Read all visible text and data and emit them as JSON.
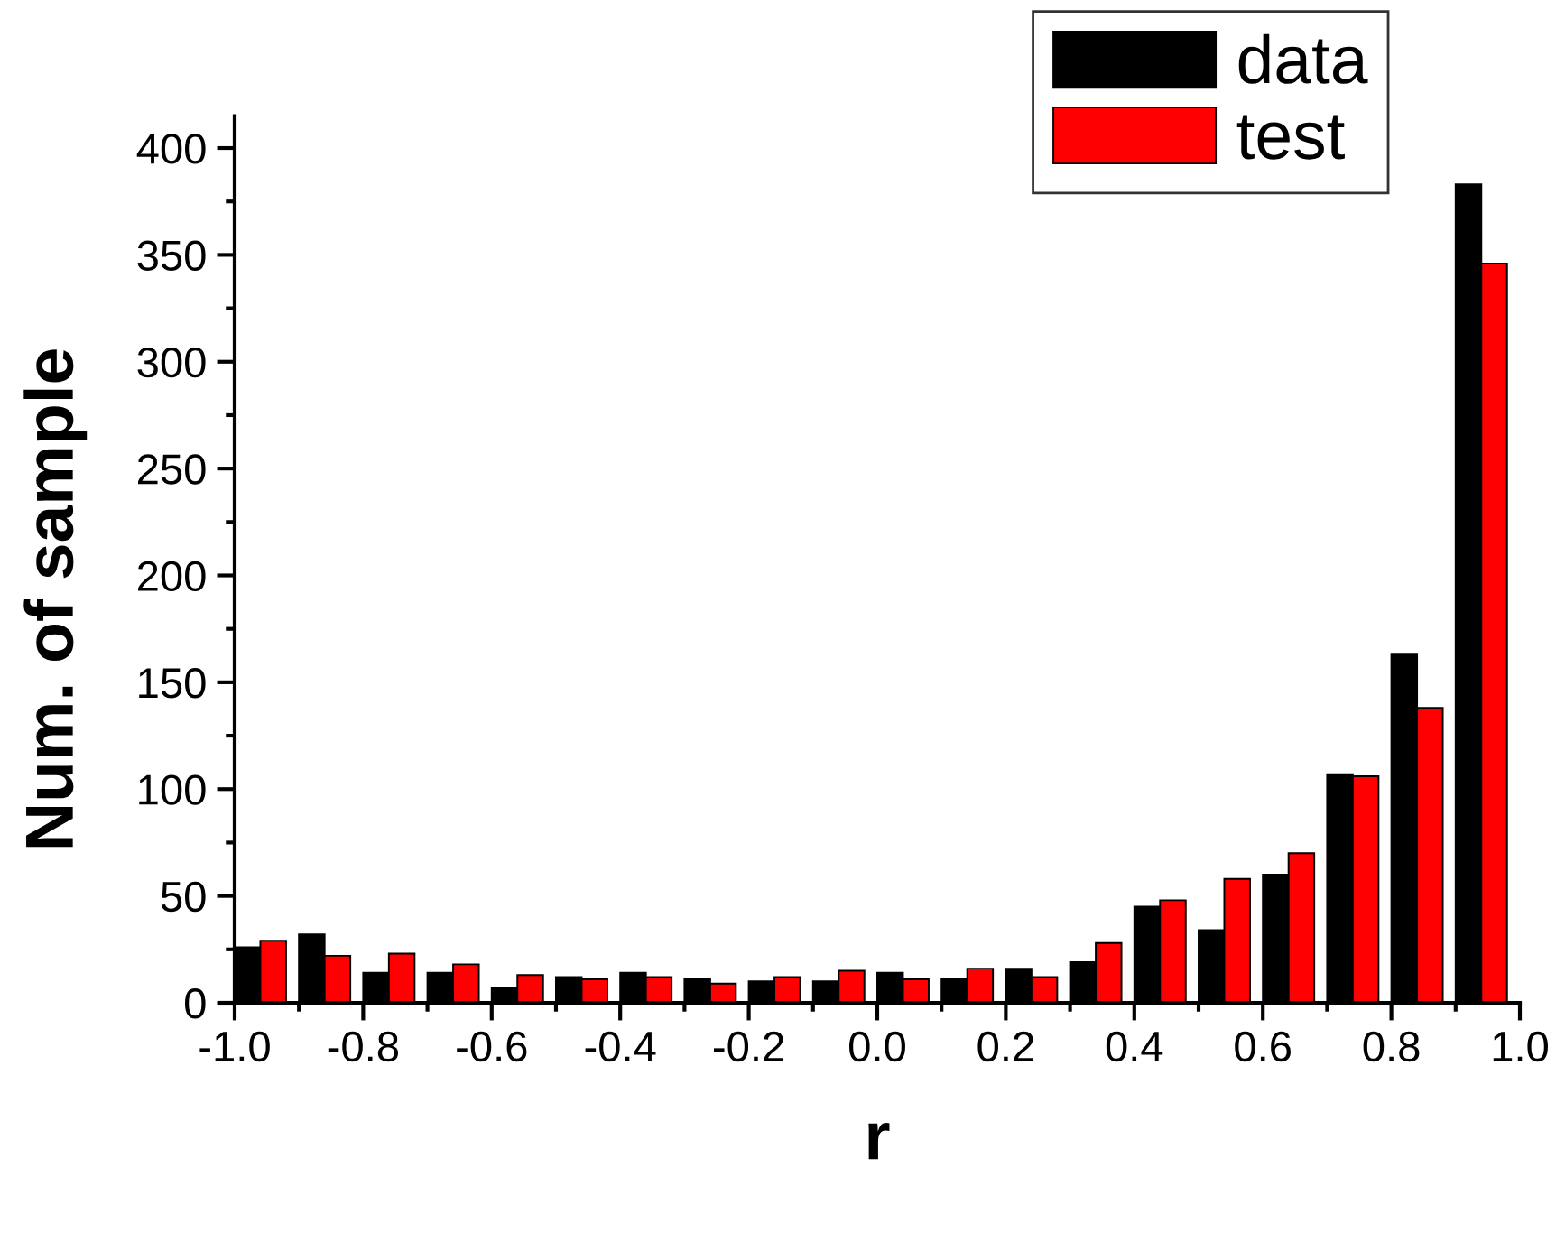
{
  "chart_data": {
    "type": "histogram",
    "xlabel": "r",
    "ylabel": "Num. of sample",
    "bins": [
      -1,
      -0.9,
      -0.8,
      -0.7,
      -0.6,
      -0.5,
      -0.4,
      -0.3,
      -0.2,
      -0.1,
      0,
      0.1,
      0.2,
      0.3,
      0.4,
      0.5,
      0.6,
      0.7,
      0.8,
      0.9,
      1
    ],
    "series": [
      {
        "name": "data",
        "color": "#000000",
        "values": [
          26,
          32,
          14,
          14,
          7,
          12,
          14,
          11,
          10,
          10,
          14,
          11,
          16,
          19,
          45,
          34,
          60,
          107,
          163,
          383
        ]
      },
      {
        "name": "test",
        "color": "#ff0000",
        "values": [
          29,
          22,
          23,
          18,
          13,
          11,
          12,
          9,
          12,
          15,
          11,
          16,
          12,
          28,
          48,
          58,
          70,
          106,
          138,
          346
        ]
      }
    ],
    "xlim": [
      -1,
      1
    ],
    "xticks": [
      {
        "value": -1,
        "label": "-1.0"
      },
      {
        "value": -0.9,
        "label": null
      },
      {
        "value": -0.8,
        "label": "-0.8"
      },
      {
        "value": -0.7,
        "label": null
      },
      {
        "value": -0.6,
        "label": "-0.6"
      },
      {
        "value": -0.5,
        "label": null
      },
      {
        "value": -0.4,
        "label": "-0.4"
      },
      {
        "value": -0.3,
        "label": null
      },
      {
        "value": -0.2,
        "label": "-0.2"
      },
      {
        "value": -0.1,
        "label": null
      },
      {
        "value": 0,
        "label": "0.0"
      },
      {
        "value": 0.1,
        "label": null
      },
      {
        "value": 0.2,
        "label": "0.2"
      },
      {
        "value": 0.3,
        "label": null
      },
      {
        "value": 0.4,
        "label": "0.4"
      },
      {
        "value": 0.5,
        "label": null
      },
      {
        "value": 0.6,
        "label": "0.6"
      },
      {
        "value": 0.7,
        "label": null
      },
      {
        "value": 0.8,
        "label": "0.8"
      },
      {
        "value": 0.9,
        "label": null
      },
      {
        "value": 1,
        "label": "1.0"
      }
    ],
    "ylim": [
      0,
      415
    ],
    "yticks": [
      0,
      {
        "value": 25,
        "label": null
      },
      50,
      {
        "value": 75,
        "label": null
      },
      100,
      {
        "value": 125,
        "label": null
      },
      150,
      {
        "value": 175,
        "label": null
      },
      200,
      {
        "value": 225,
        "label": null
      },
      250,
      {
        "value": 275,
        "label": null
      },
      300,
      {
        "value": 325,
        "label": null
      },
      350,
      {
        "value": 375,
        "label": null
      },
      400
    ],
    "legend": "top right"
  }
}
